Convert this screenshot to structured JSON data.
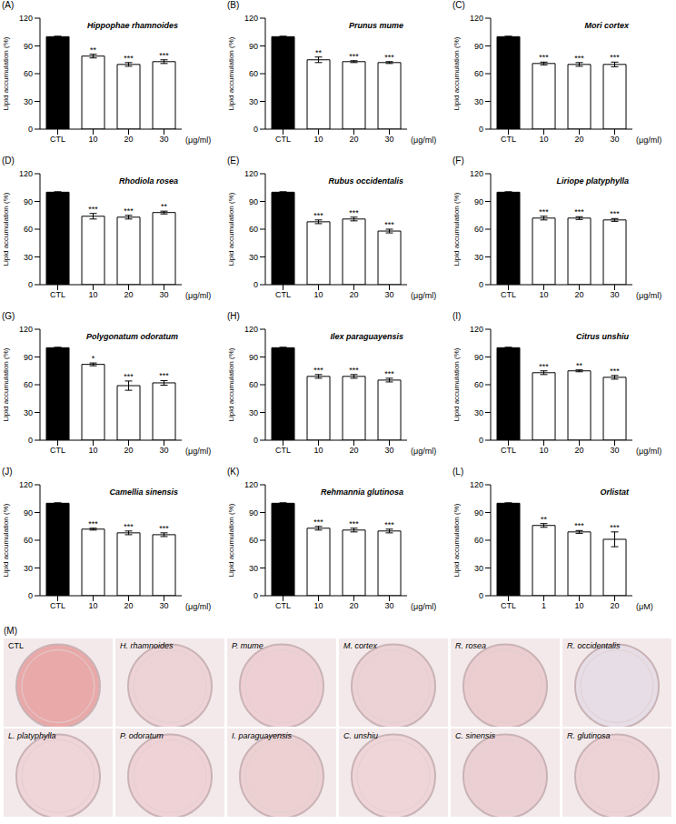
{
  "chart_data": [
    {
      "type": "bar",
      "panel": "(A)",
      "title": "Hippophae rhamnoides",
      "y_label": "Lipid accumulation (%)",
      "x_unit": "(μg/ml)",
      "categories": [
        "CTL",
        "10",
        "20",
        "30"
      ],
      "values": [
        100,
        79,
        70,
        73
      ],
      "errors": [
        0.5,
        2,
        2,
        2
      ],
      "significance": [
        null,
        "**",
        "***",
        "***"
      ],
      "colors": [
        "#000000",
        "#ffffff",
        "#ffffff",
        "#ffffff"
      ],
      "ylim": [
        0,
        120
      ],
      "yticks": [
        0,
        30,
        60,
        90,
        120
      ]
    },
    {
      "type": "bar",
      "panel": "(B)",
      "title": "Prunus mume",
      "y_label": "Lipid accumulation (%)",
      "x_unit": "(μg/ml)",
      "categories": [
        "CTL",
        "10",
        "20",
        "30"
      ],
      "values": [
        100,
        75,
        73,
        72
      ],
      "errors": [
        0.5,
        3,
        1,
        1
      ],
      "significance": [
        null,
        "**",
        "***",
        "***"
      ],
      "colors": [
        "#000000",
        "#ffffff",
        "#ffffff",
        "#ffffff"
      ],
      "ylim": [
        0,
        120
      ],
      "yticks": [
        0,
        30,
        60,
        90,
        120
      ]
    },
    {
      "type": "bar",
      "panel": "(C)",
      "title": "Mori cortex",
      "y_label": "Lipid accumulation (%)",
      "x_unit": "(μg/ml)",
      "categories": [
        "CTL",
        "10",
        "20",
        "30"
      ],
      "values": [
        100,
        71,
        70,
        70
      ],
      "errors": [
        0.5,
        1.5,
        2,
        2.5
      ],
      "significance": [
        null,
        "***",
        "***",
        "***"
      ],
      "colors": [
        "#000000",
        "#ffffff",
        "#ffffff",
        "#ffffff"
      ],
      "ylim": [
        0,
        120
      ],
      "yticks": [
        0,
        30,
        60,
        90,
        120
      ]
    },
    {
      "type": "bar",
      "panel": "(D)",
      "title": "Rhodiola rosea",
      "y_label": "Lipid accumulation (%)",
      "x_unit": "(μg/ml)",
      "categories": [
        "CTL",
        "10",
        "20",
        "30"
      ],
      "values": [
        100,
        74,
        73,
        78
      ],
      "errors": [
        0.5,
        3,
        2,
        1.5
      ],
      "significance": [
        null,
        "***",
        "***",
        "**"
      ],
      "colors": [
        "#000000",
        "#ffffff",
        "#ffffff",
        "#ffffff"
      ],
      "ylim": [
        0,
        120
      ],
      "yticks": [
        0,
        30,
        60,
        90,
        120
      ]
    },
    {
      "type": "bar",
      "panel": "(E)",
      "title": "Rubus occidentalis",
      "y_label": "Lipid accumulation (%)",
      "x_unit": "(μg/ml)",
      "categories": [
        "CTL",
        "10",
        "20",
        "30"
      ],
      "values": [
        100,
        68,
        71,
        58
      ],
      "errors": [
        0.5,
        2,
        2,
        2
      ],
      "significance": [
        null,
        "***",
        "***",
        "***"
      ],
      "colors": [
        "#000000",
        "#ffffff",
        "#ffffff",
        "#ffffff"
      ],
      "ylim": [
        0,
        120
      ],
      "yticks": [
        0,
        30,
        60,
        90,
        120
      ]
    },
    {
      "type": "bar",
      "panel": "(F)",
      "title": "Liriope platyphylla",
      "y_label": "Lipid accumulation (%)",
      "x_unit": "(μg/ml)",
      "categories": [
        "CTL",
        "10",
        "20",
        "30"
      ],
      "values": [
        100,
        72,
        72,
        70
      ],
      "errors": [
        0.5,
        2,
        1.5,
        1.5
      ],
      "significance": [
        null,
        "***",
        "***",
        "***"
      ],
      "colors": [
        "#000000",
        "#ffffff",
        "#ffffff",
        "#ffffff"
      ],
      "ylim": [
        0,
        120
      ],
      "yticks": [
        0,
        30,
        60,
        90,
        120
      ]
    },
    {
      "type": "bar",
      "panel": "(G)",
      "title": "Polygonatum odoratum",
      "y_label": "Lipid accumulation (%)",
      "x_unit": "(μg/ml)",
      "categories": [
        "CTL",
        "10",
        "20",
        "30"
      ],
      "values": [
        100,
        82,
        59,
        62
      ],
      "errors": [
        0.5,
        1.5,
        5,
        2.5
      ],
      "significance": [
        null,
        "*",
        "***",
        "***"
      ],
      "colors": [
        "#000000",
        "#ffffff",
        "#ffffff",
        "#ffffff"
      ],
      "ylim": [
        0,
        120
      ],
      "yticks": [
        0,
        30,
        60,
        90,
        120
      ]
    },
    {
      "type": "bar",
      "panel": "(H)",
      "title": "Ilex paraguayensis",
      "y_label": "Lipid accumulation (%)",
      "x_unit": "(μg/ml)",
      "categories": [
        "CTL",
        "10",
        "20",
        "30"
      ],
      "values": [
        100,
        69,
        69,
        65
      ],
      "errors": [
        0.5,
        2,
        2,
        2
      ],
      "significance": [
        null,
        "***",
        "***",
        "***"
      ],
      "colors": [
        "#000000",
        "#ffffff",
        "#ffffff",
        "#ffffff"
      ],
      "ylim": [
        0,
        120
      ],
      "yticks": [
        0,
        30,
        60,
        90,
        120
      ]
    },
    {
      "type": "bar",
      "panel": "(I)",
      "title": "Citrus unshiu",
      "y_label": "Lipid accumulation (%)",
      "x_unit": "(μg/ml)",
      "categories": [
        "CTL",
        "10",
        "20",
        "30"
      ],
      "values": [
        100,
        73,
        75,
        68
      ],
      "errors": [
        0.5,
        2,
        1,
        2
      ],
      "significance": [
        null,
        "***",
        "**",
        "***"
      ],
      "colors": [
        "#000000",
        "#ffffff",
        "#ffffff",
        "#ffffff"
      ],
      "ylim": [
        0,
        120
      ],
      "yticks": [
        0,
        30,
        60,
        90,
        120
      ]
    },
    {
      "type": "bar",
      "panel": "(J)",
      "title": "Camellia sinensis",
      "y_label": "Lipid accumulation (%)",
      "x_unit": "(μg/ml)",
      "categories": [
        "CTL",
        "10",
        "20",
        "30"
      ],
      "values": [
        100,
        72,
        68,
        66
      ],
      "errors": [
        0.5,
        1,
        2,
        2
      ],
      "significance": [
        null,
        "***",
        "***",
        "***"
      ],
      "colors": [
        "#000000",
        "#ffffff",
        "#ffffff",
        "#ffffff"
      ],
      "ylim": [
        0,
        120
      ],
      "yticks": [
        0,
        30,
        60,
        90,
        120
      ]
    },
    {
      "type": "bar",
      "panel": "(K)",
      "title": "Rehmannia glutinosa",
      "y_label": "Lipid accumulation (%)",
      "x_unit": "(μg/ml)",
      "categories": [
        "CTL",
        "10",
        "20",
        "30"
      ],
      "values": [
        100,
        73,
        71,
        70
      ],
      "errors": [
        0.5,
        2,
        2,
        2
      ],
      "significance": [
        null,
        "***",
        "***",
        "***"
      ],
      "colors": [
        "#000000",
        "#ffffff",
        "#ffffff",
        "#ffffff"
      ],
      "ylim": [
        0,
        120
      ],
      "yticks": [
        0,
        30,
        60,
        90,
        120
      ]
    },
    {
      "type": "bar",
      "panel": "(L)",
      "title": "Orlistat",
      "y_label": "Lipid accumulation (%)",
      "x_unit": "(μM)",
      "categories": [
        "CTL",
        "1",
        "10",
        "20"
      ],
      "values": [
        100,
        76,
        69,
        61
      ],
      "errors": [
        0.5,
        2,
        1.5,
        8
      ],
      "significance": [
        null,
        "**",
        "***",
        "***"
      ],
      "colors": [
        "#000000",
        "#ffffff",
        "#ffffff",
        "#ffffff"
      ],
      "ylim": [
        0,
        120
      ],
      "yticks": [
        0,
        30,
        60,
        90,
        120
      ]
    }
  ],
  "images_panel": {
    "panel": "(M)",
    "images": [
      {
        "label": "CTL",
        "color": "#e9a9a9"
      },
      {
        "label": "H. rhamnoides",
        "color": "#eed3d6"
      },
      {
        "label": "P. mume",
        "color": "#eed0d4"
      },
      {
        "label": "M. cortex",
        "color": "#ecd2d5"
      },
      {
        "label": "R. rosea",
        "color": "#eccdd0"
      },
      {
        "label": "R. occidentalis",
        "color": "#e6dde6"
      },
      {
        "label": "L. platyphylla",
        "color": "#efd4d8"
      },
      {
        "label": "P. odoratum",
        "color": "#efd2d6"
      },
      {
        "label": "I. paraguayensis",
        "color": "#ecd0d2"
      },
      {
        "label": "C. unshiu",
        "color": "#efd5d8"
      },
      {
        "label": "C. sinensis",
        "color": "#eccfd3"
      },
      {
        "label": "R. glutinosa",
        "color": "#eed3d6"
      }
    ]
  }
}
